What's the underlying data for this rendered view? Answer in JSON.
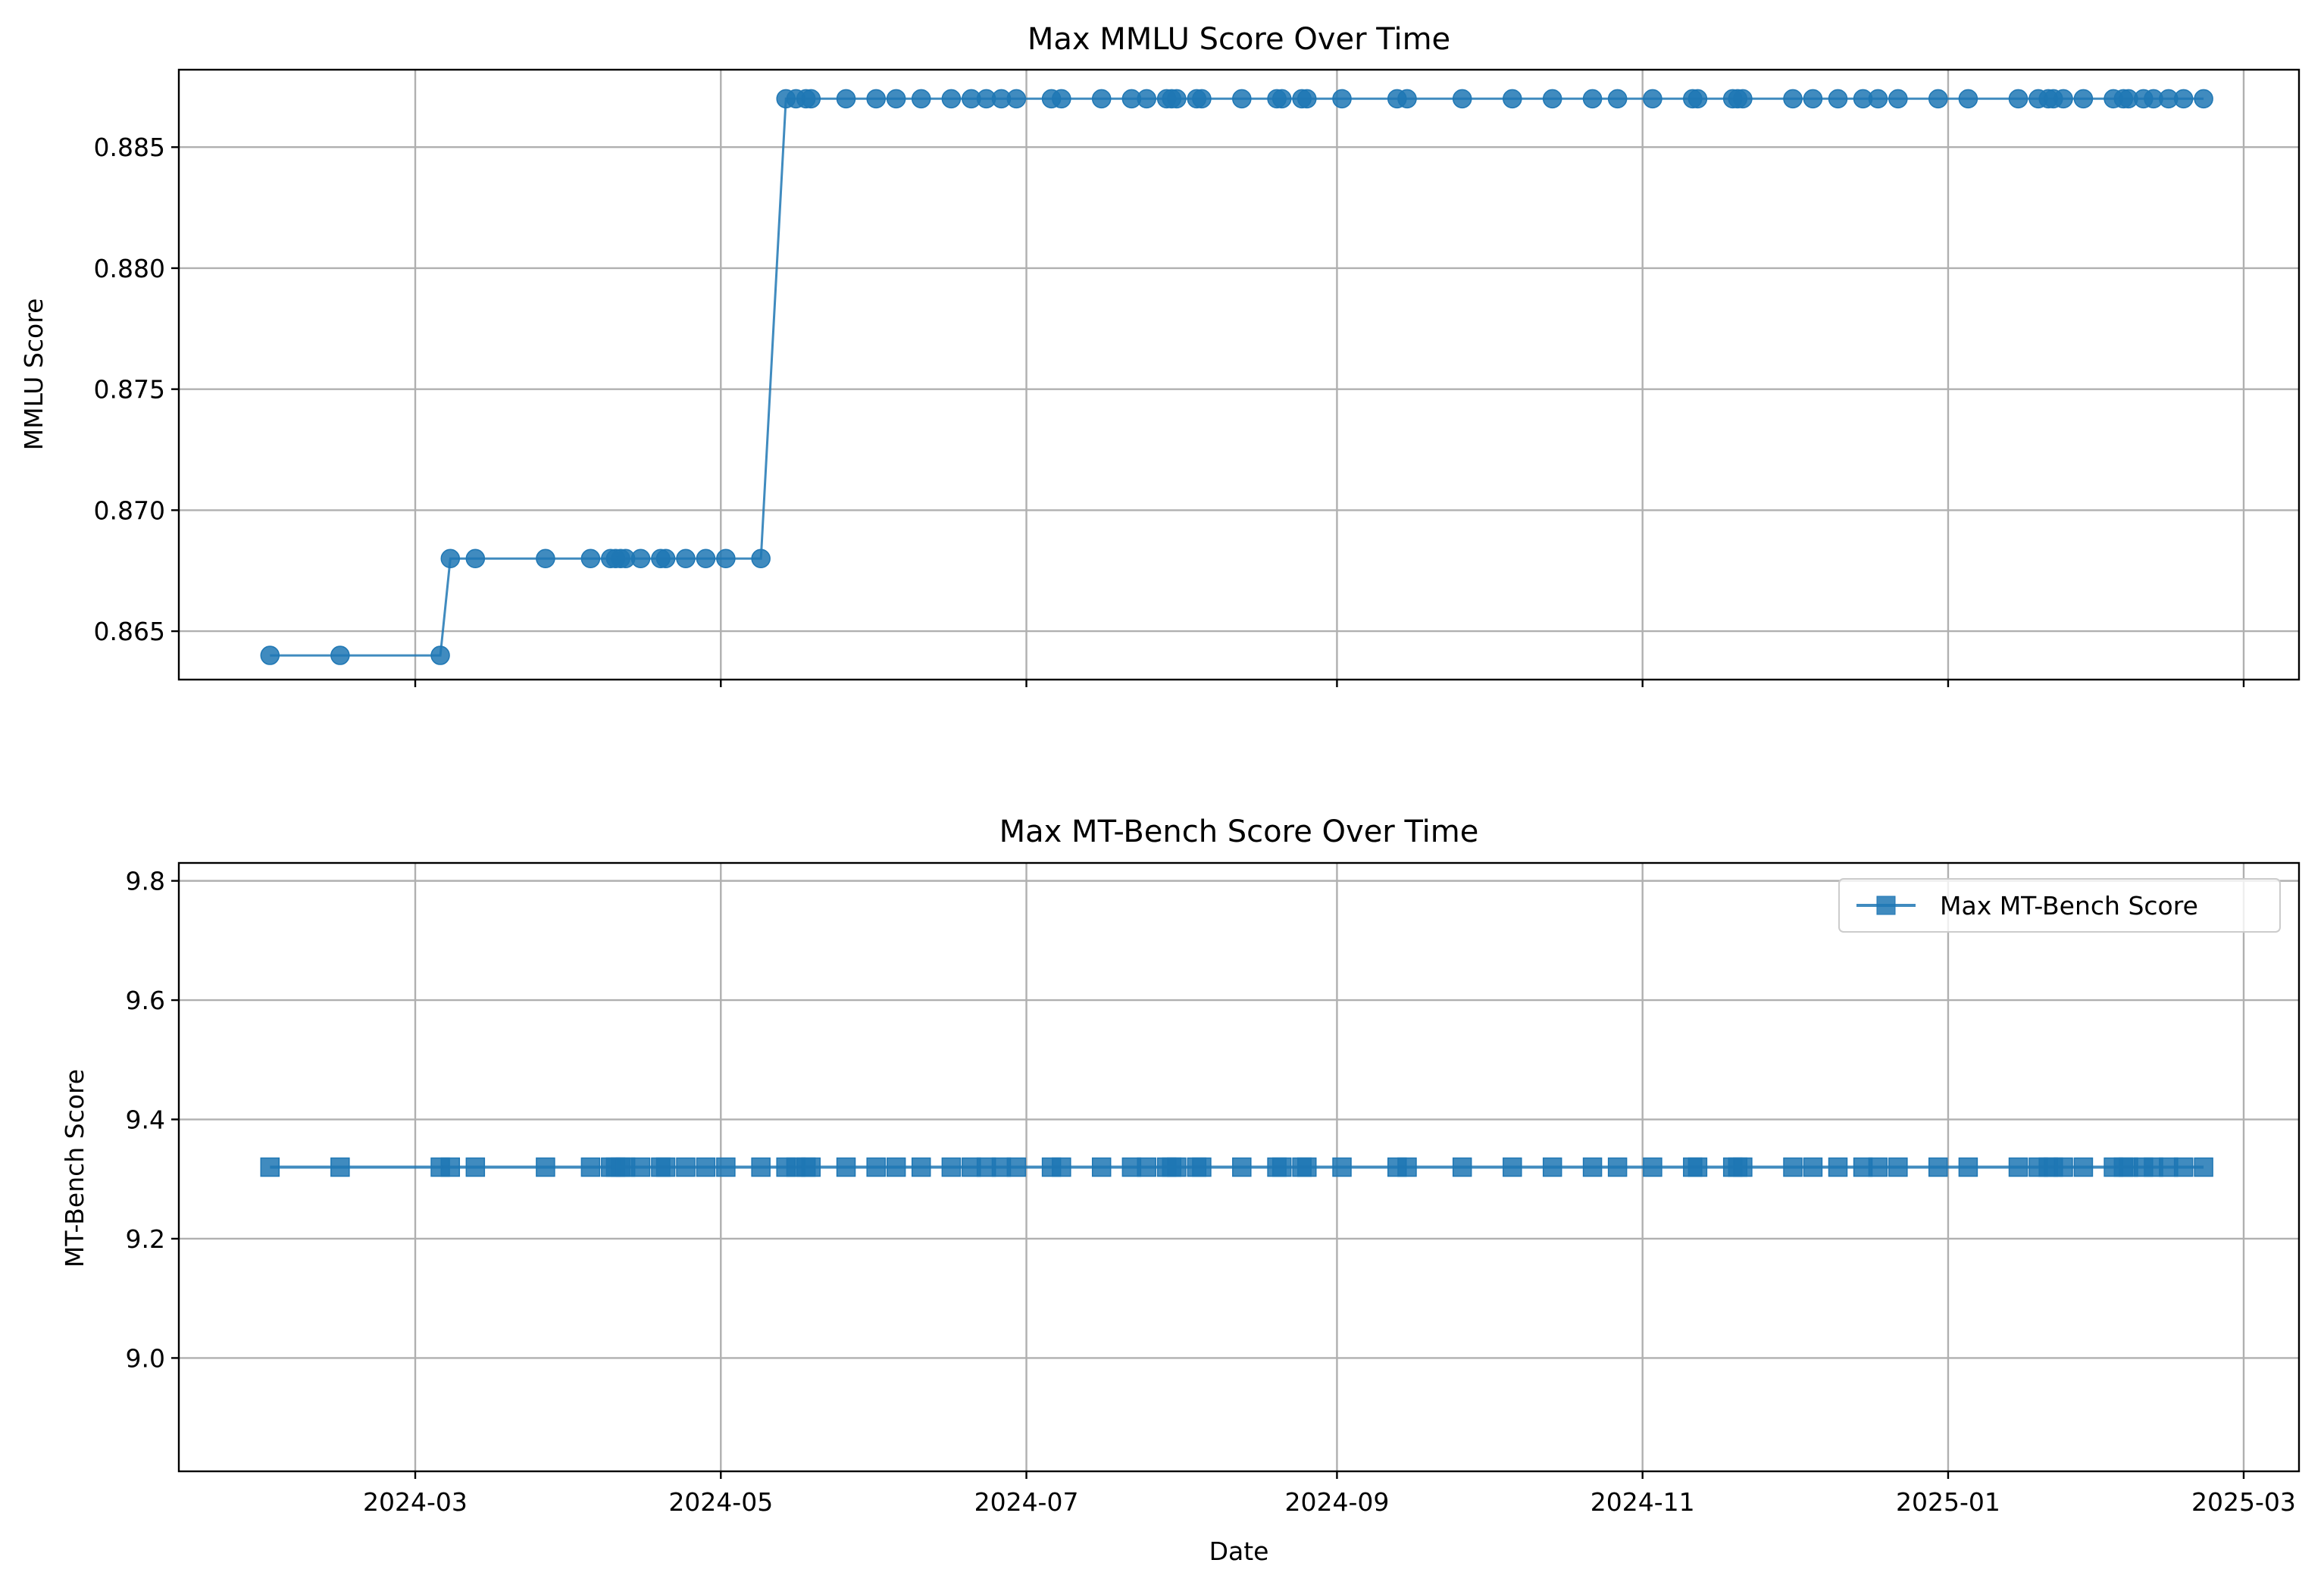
{
  "chart_data": [
    {
      "type": "line",
      "title": "Max MMLU Score Over Time",
      "xlabel": "",
      "ylabel": "MMLU Score",
      "color": "#1f77b4",
      "marker": "circle",
      "grid": true,
      "ylim": [
        0.863,
        0.8882
      ],
      "yticks": [
        0.865,
        0.87,
        0.875,
        0.88,
        0.885
      ],
      "ytick_labels": [
        "0.865",
        "0.870",
        "0.875",
        "0.880",
        "0.885"
      ],
      "xtick_labels": [],
      "series": [
        {
          "x": [
            "2024-02-01",
            "2024-02-15",
            "2024-03-06",
            "2024-03-08",
            "2024-03-13",
            "2024-03-27",
            "2024-04-05",
            "2024-04-09",
            "2024-04-10",
            "2024-04-11",
            "2024-04-12",
            "2024-04-15",
            "2024-04-19",
            "2024-04-20",
            "2024-04-24",
            "2024-04-28",
            "2024-05-02",
            "2024-05-09",
            "2024-05-14",
            "2024-05-16",
            "2024-05-18",
            "2024-05-19",
            "2024-05-26",
            "2024-06-01",
            "2024-06-05",
            "2024-06-10",
            "2024-06-16",
            "2024-06-20",
            "2024-06-23",
            "2024-06-26",
            "2024-06-29",
            "2024-07-06",
            "2024-07-08",
            "2024-07-16",
            "2024-07-22",
            "2024-07-25",
            "2024-07-29",
            "2024-07-30",
            "2024-07-31",
            "2024-08-04",
            "2024-08-05",
            "2024-08-13",
            "2024-08-20",
            "2024-08-21",
            "2024-08-25",
            "2024-08-26",
            "2024-09-02",
            "2024-09-13",
            "2024-09-15",
            "2024-09-26",
            "2024-10-06",
            "2024-10-14",
            "2024-10-22",
            "2024-10-27",
            "2024-11-03",
            "2024-11-11",
            "2024-11-12",
            "2024-11-19",
            "2024-11-20",
            "2024-11-21",
            "2024-12-01",
            "2024-12-05",
            "2024-12-10",
            "2024-12-15",
            "2024-12-18",
            "2024-12-22",
            "2024-12-30",
            "2025-01-05",
            "2025-01-15",
            "2025-01-19",
            "2025-01-21",
            "2025-01-22",
            "2025-01-24",
            "2025-01-28",
            "2025-02-03",
            "2025-02-05",
            "2025-02-06",
            "2025-02-09",
            "2025-02-11",
            "2025-02-14",
            "2025-02-17",
            "2025-02-21"
          ],
          "values": [
            0.864,
            0.864,
            0.864,
            0.868,
            0.868,
            0.868,
            0.868,
            0.868,
            0.868,
            0.868,
            0.868,
            0.868,
            0.868,
            0.868,
            0.868,
            0.868,
            0.868,
            0.868,
            0.887,
            0.887,
            0.887,
            0.887,
            0.887,
            0.887,
            0.887,
            0.887,
            0.887,
            0.887,
            0.887,
            0.887,
            0.887,
            0.887,
            0.887,
            0.887,
            0.887,
            0.887,
            0.887,
            0.887,
            0.887,
            0.887,
            0.887,
            0.887,
            0.887,
            0.887,
            0.887,
            0.887,
            0.887,
            0.887,
            0.887,
            0.887,
            0.887,
            0.887,
            0.887,
            0.887,
            0.887,
            0.887,
            0.887,
            0.887,
            0.887,
            0.887,
            0.887,
            0.887,
            0.887,
            0.887,
            0.887,
            0.887,
            0.887,
            0.887,
            0.887,
            0.887,
            0.887,
            0.887,
            0.887,
            0.887,
            0.887,
            0.887,
            0.887,
            0.887,
            0.887,
            0.887,
            0.887,
            0.887
          ]
        }
      ]
    },
    {
      "type": "line",
      "title": "Max MT-Bench Score Over Time",
      "xlabel": "Date",
      "ylabel": "MT-Bench Score",
      "color": "#1f77b4",
      "marker": "square",
      "grid": true,
      "legend": "top-right",
      "ylim": [
        8.81,
        9.83
      ],
      "yticks": [
        9.0,
        9.2,
        9.4,
        9.6,
        9.8
      ],
      "ytick_labels": [
        "9.0",
        "9.2",
        "9.4",
        "9.6",
        "9.8"
      ],
      "xtick_labels": [
        "2024-03",
        "2024-05",
        "2024-07",
        "2024-09",
        "2024-11",
        "2025-01",
        "2025-03"
      ],
      "series": [
        {
          "name": "Max MT-Bench Score",
          "x": [
            "2024-02-01",
            "2024-02-15",
            "2024-03-06",
            "2024-03-08",
            "2024-03-13",
            "2024-03-27",
            "2024-04-05",
            "2024-04-09",
            "2024-04-10",
            "2024-04-11",
            "2024-04-12",
            "2024-04-15",
            "2024-04-19",
            "2024-04-20",
            "2024-04-24",
            "2024-04-28",
            "2024-05-02",
            "2024-05-09",
            "2024-05-14",
            "2024-05-16",
            "2024-05-18",
            "2024-05-19",
            "2024-05-26",
            "2024-06-01",
            "2024-06-05",
            "2024-06-10",
            "2024-06-16",
            "2024-06-20",
            "2024-06-23",
            "2024-06-26",
            "2024-06-29",
            "2024-07-06",
            "2024-07-08",
            "2024-07-16",
            "2024-07-22",
            "2024-07-25",
            "2024-07-29",
            "2024-07-30",
            "2024-07-31",
            "2024-08-04",
            "2024-08-05",
            "2024-08-13",
            "2024-08-20",
            "2024-08-21",
            "2024-08-25",
            "2024-08-26",
            "2024-09-02",
            "2024-09-13",
            "2024-09-15",
            "2024-09-26",
            "2024-10-06",
            "2024-10-14",
            "2024-10-22",
            "2024-10-27",
            "2024-11-03",
            "2024-11-11",
            "2024-11-12",
            "2024-11-19",
            "2024-11-20",
            "2024-11-21",
            "2024-12-01",
            "2024-12-05",
            "2024-12-10",
            "2024-12-15",
            "2024-12-18",
            "2024-12-22",
            "2024-12-30",
            "2025-01-05",
            "2025-01-15",
            "2025-01-19",
            "2025-01-21",
            "2025-01-22",
            "2025-01-24",
            "2025-01-28",
            "2025-02-03",
            "2025-02-05",
            "2025-02-06",
            "2025-02-09",
            "2025-02-11",
            "2025-02-14",
            "2025-02-17",
            "2025-02-21"
          ],
          "values": [
            9.32,
            9.32,
            9.32,
            9.32,
            9.32,
            9.32,
            9.32,
            9.32,
            9.32,
            9.32,
            9.32,
            9.32,
            9.32,
            9.32,
            9.32,
            9.32,
            9.32,
            9.32,
            9.32,
            9.32,
            9.32,
            9.32,
            9.32,
            9.32,
            9.32,
            9.32,
            9.32,
            9.32,
            9.32,
            9.32,
            9.32,
            9.32,
            9.32,
            9.32,
            9.32,
            9.32,
            9.32,
            9.32,
            9.32,
            9.32,
            9.32,
            9.32,
            9.32,
            9.32,
            9.32,
            9.32,
            9.32,
            9.32,
            9.32,
            9.32,
            9.32,
            9.32,
            9.32,
            9.32,
            9.32,
            9.32,
            9.32,
            9.32,
            9.32,
            9.32,
            9.32,
            9.32,
            9.32,
            9.32,
            9.32,
            9.32,
            9.32,
            9.32,
            9.32,
            9.32,
            9.32,
            9.32,
            9.32,
            9.32,
            9.32,
            9.32,
            9.32,
            9.32,
            9.32,
            9.32,
            9.32,
            9.32
          ]
        }
      ]
    }
  ]
}
